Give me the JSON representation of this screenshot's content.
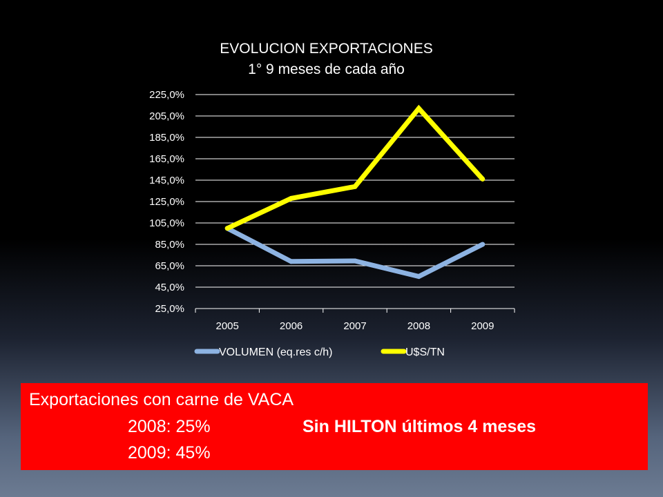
{
  "chart_data": {
    "type": "line",
    "title": "EVOLUCION EXPORTACIONES",
    "subtitle": "1° 9  meses de cada año",
    "categories": [
      "2005",
      "2006",
      "2007",
      "2008",
      "2009"
    ],
    "y_ticks": [
      "25,0%",
      "45,0%",
      "65,0%",
      "85,0%",
      "105,0%",
      "125,0%",
      "145,0%",
      "165,0%",
      "185,0%",
      "205,0%",
      "225,0%"
    ],
    "ylim": [
      25,
      225
    ],
    "grid": true,
    "legend_position": "bottom",
    "series": [
      {
        "name": "VOLUMEN (eq.res c/h)",
        "color": "#8db3e2",
        "values": [
          100,
          69,
          69.5,
          55,
          85
        ]
      },
      {
        "name": "U$S/TN",
        "color": "#ffff00",
        "values": [
          100,
          128,
          139,
          212,
          146
        ]
      }
    ]
  },
  "callout": {
    "line1": "Exportaciones con carne de VACA",
    "line2": "2008: 25%",
    "line3": "2009: 45%",
    "note": "Sin HILTON últimos 4 meses",
    "color": "#ff0000"
  }
}
